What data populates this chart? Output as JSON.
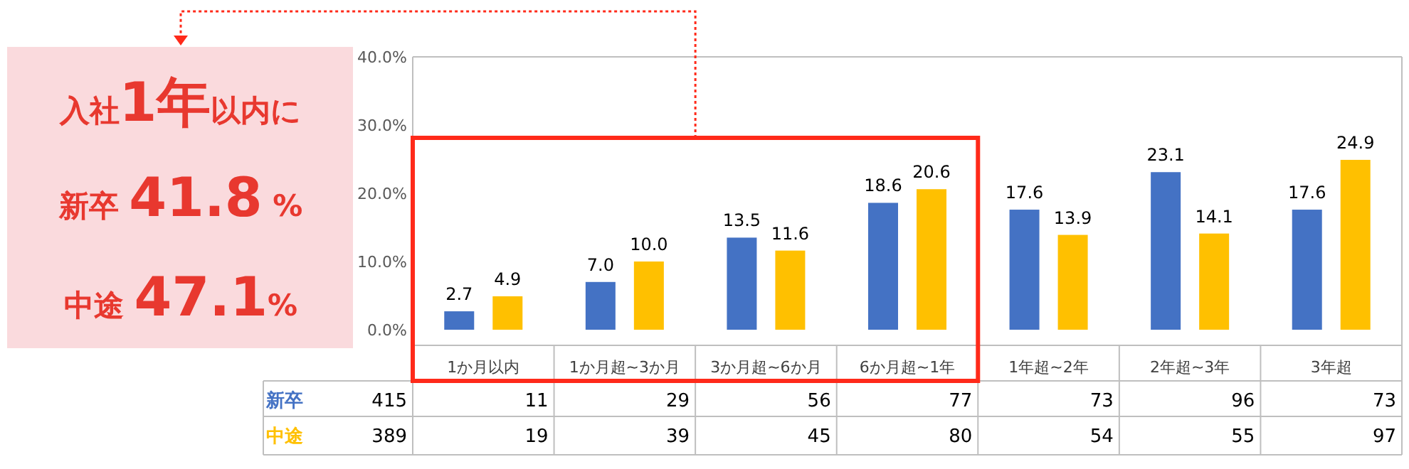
{
  "chart_data": {
    "type": "bar",
    "categories": [
      "1か月以内",
      "1か月超~3か月",
      "3か月超~6か月",
      "6か月超~1年",
      "1年超~2年",
      "2年超~3年",
      "3年超"
    ],
    "series": [
      {
        "name": "新卒",
        "color": "#4472c4",
        "values": [
          2.7,
          7.0,
          13.5,
          18.6,
          17.6,
          23.1,
          17.6
        ],
        "value_labels": [
          "2.7",
          "7.0",
          "13.5",
          "18.6",
          "17.6",
          "23.1",
          "17.6"
        ]
      },
      {
        "name": "中途",
        "color": "#ffc000",
        "values": [
          4.9,
          10.0,
          11.6,
          20.6,
          13.9,
          14.1,
          24.9
        ],
        "value_labels": [
          "4.9",
          "10.0",
          "11.6",
          "20.6",
          "13.9",
          "14.1",
          "24.9"
        ]
      }
    ],
    "ylim": [
      0,
      40
    ],
    "yticks": [
      {
        "value": 0,
        "label": "0.0%"
      },
      {
        "value": 10,
        "label": "10.0%"
      },
      {
        "value": 20,
        "label": "20.0%"
      },
      {
        "value": 30,
        "label": "30.0%"
      },
      {
        "value": 40,
        "label": "40.0%"
      }
    ],
    "annotations": [
      "入社**1年**以内に",
      "新卒 **41.8** %",
      "中途 **47.1**%",
      "415",
      "11",
      "29",
      "56",
      "77",
      "73",
      "96",
      "73",
      "389",
      "19",
      "39",
      "45",
      "80",
      "54",
      "55",
      "97"
    ]
  }
}
